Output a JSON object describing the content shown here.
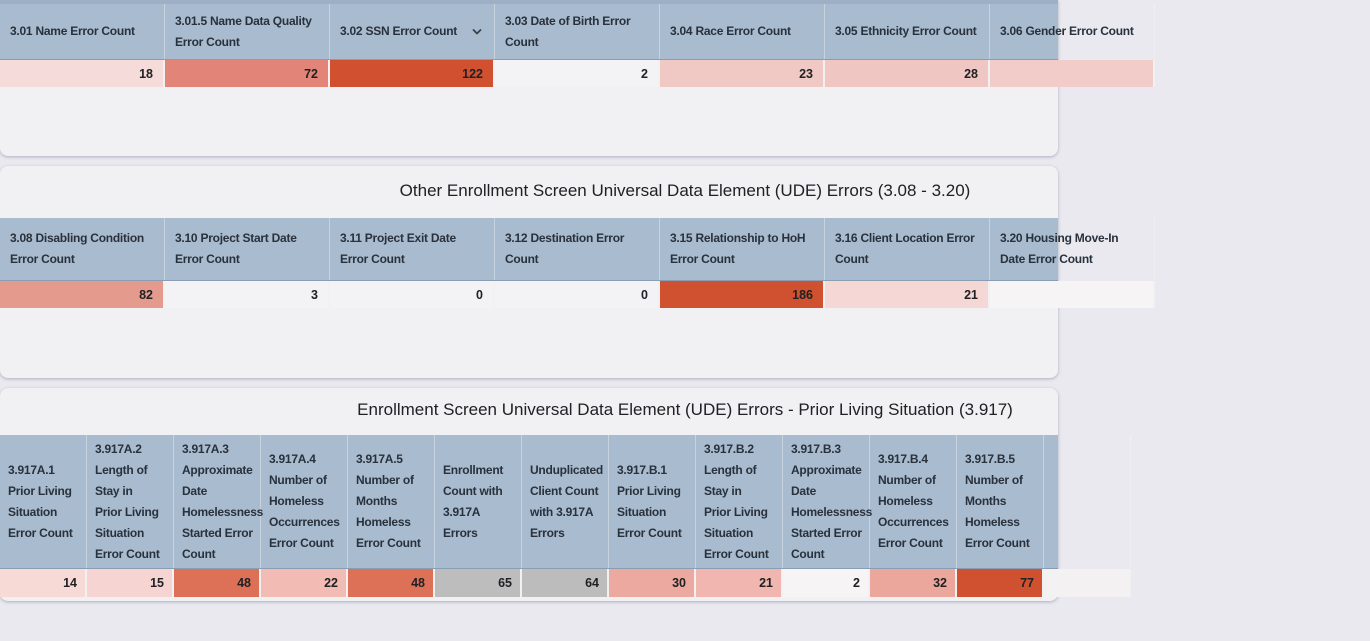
{
  "theme": {
    "page_bg": "#e9e9ef",
    "card_bg": "#f1f0f3",
    "header_bg": "#a9bbce",
    "header_text": "#28313c",
    "value_text": "#202124",
    "title_text": "#202124",
    "strong_error_color": "#d05231",
    "medium_error_color": "#dd7158",
    "light_error_color": "#f5dbd9",
    "neutral_count_color": "#bdbdbd"
  },
  "icons": {
    "sort_menu": "chevron-down-icon"
  },
  "sections": [
    {
      "id": "ude-client-elements",
      "title": "",
      "columns": [
        {
          "label": "3.01 Name Error Count",
          "lines": [
            "3.01 Name Error Count"
          ],
          "value": "18",
          "color": "#f5dbd9"
        },
        {
          "label": "3.01.5 Name Data Quality Error Count",
          "lines": [
            "3.01.5 Name Data Quality",
            "Error Count"
          ],
          "value": "72",
          "color": "#e28478"
        },
        {
          "label": "3.02 SSN Error Count",
          "lines": [
            "3.02 SSN Error Count"
          ],
          "value": "122",
          "color": "#d05030",
          "has_dropdown": true
        },
        {
          "label": "3.03 Date of Birth Error Count",
          "lines": [
            "3.03 Date of Birth Error",
            "Count"
          ],
          "value": "2",
          "color": "#f3f2f4"
        },
        {
          "label": "3.04 Race Error Count",
          "lines": [
            "3.04 Race Error Count"
          ],
          "value": "23",
          "color": "#f0c9c5"
        },
        {
          "label": "3.05 Ethnicity Error Count",
          "lines": [
            "3.05 Ethnicity Error Count"
          ],
          "value": "28",
          "color": "#efc6c2"
        },
        {
          "label": "3.06 Gender Error Count",
          "lines": [
            "3.06 Gender Error Count"
          ],
          "value": "",
          "color": "#f1ccc8"
        }
      ]
    },
    {
      "id": "ude-other-enrollment",
      "title": "Other Enrollment Screen Universal Data Element (UDE) Errors (3.08 - 3.20)",
      "columns": [
        {
          "label": "3.08 Disabling Condition Error Count",
          "lines": [
            "3.08 Disabling Condition",
            "Error Count"
          ],
          "value": "82",
          "color": "#e59a8e"
        },
        {
          "label": "3.10 Project Start Date Error Count",
          "lines": [
            "3.10 Project Start Date",
            "Error Count"
          ],
          "value": "3",
          "color": "#f3f2f4"
        },
        {
          "label": "3.11 Project Exit Date Error Count",
          "lines": [
            "3.11 Project Exit Date",
            "Error Count"
          ],
          "value": "0",
          "color": "#f3f2f4"
        },
        {
          "label": "3.12 Destination Error Count",
          "lines": [
            "3.12 Destination Error",
            "Count"
          ],
          "value": "0",
          "color": "#f3f2f4"
        },
        {
          "label": "3.15 Relationship to HoH Error Count",
          "lines": [
            "3.15 Relationship to HoH",
            "Error Count"
          ],
          "value": "186",
          "color": "#d0512f"
        },
        {
          "label": "3.16 Client Location Error Count",
          "lines": [
            "3.16 Client Location Error",
            "Count"
          ],
          "value": "21",
          "color": "#f5d8d5"
        },
        {
          "label": "3.20 Housing Move-In Date Error Count",
          "lines": [
            "3.20 Housing Move-In",
            "Date Error Count"
          ],
          "value": "",
          "color": "#f6f4f4"
        }
      ]
    },
    {
      "id": "ude-prior-living-situation",
      "title": "Enrollment Screen Universal Data Element (UDE) Errors - Prior Living Situation (3.917)",
      "columns": [
        {
          "label": "3.917A.1 Prior Living Situation Error Count",
          "lines": [
            "3.917A.1",
            "Prior Living",
            "Situation",
            "Error Count"
          ],
          "value": "14",
          "color": "#f7d9d6"
        },
        {
          "label": "3.917A.2 Length of Stay in Prior Living Situation Error Count",
          "lines": [
            "3.917A.2",
            "Length of",
            "Stay in",
            "Prior Living",
            "Situation",
            "Error Count"
          ],
          "value": "15",
          "color": "#f6d4d1"
        },
        {
          "label": "3.917A.3 Approximate Date Homelessness Started Error Count",
          "lines": [
            "3.917A.3",
            "Approximate",
            "Date",
            "Homelessness",
            "Started Error",
            "Count"
          ],
          "value": "48",
          "color": "#dd7158"
        },
        {
          "label": "3.917A.4 Number of Homeless Occurrences Error Count",
          "lines": [
            "3.917A.4",
            "Number of",
            "Homeless",
            "Occurrences",
            "Error Count"
          ],
          "value": "22",
          "color": "#f2bcb5"
        },
        {
          "label": "3.917A.5 Number of Months Homeless Error Count",
          "lines": [
            "3.917A.5",
            "Number of",
            "Months",
            "Homeless",
            "Error Count"
          ],
          "value": "48",
          "color": "#dd7158"
        },
        {
          "label": "Enrollment Count with 3.917A Errors",
          "lines": [
            "Enrollment",
            "Count with",
            "3.917A",
            "Errors"
          ],
          "value": "65",
          "color": "#bdbdbd"
        },
        {
          "label": "Unduplicated Client Count with 3.917A Errors",
          "lines": [
            "Unduplicated",
            "Client Count",
            "with 3.917A",
            "Errors"
          ],
          "value": "64",
          "color": "#bcbcbc"
        },
        {
          "label": "3.917.B.1 Prior Living Situation Error Count",
          "lines": [
            "3.917.B.1",
            "Prior Living",
            "Situation",
            "Error Count"
          ],
          "value": "30",
          "color": "#eca99f"
        },
        {
          "label": "3.917.B.2 Length of Stay in Prior Living Situation Error Count",
          "lines": [
            "3.917.B.2",
            "Length of",
            "Stay in",
            "Prior Living",
            "Situation",
            "Error Count"
          ],
          "value": "21",
          "color": "#f0b6af"
        },
        {
          "label": "3.917.B.3 Approximate Date Homelessness Started Error Count",
          "lines": [
            "3.917.B.3",
            "Approximate",
            "Date",
            "Homelessness",
            "Started Error",
            "Count"
          ],
          "value": "2",
          "color": "#f6f4f5"
        },
        {
          "label": "3.917.B.4 Number of Homeless Occurrences Error Count",
          "lines": [
            "3.917.B.4",
            "Number of",
            "Homeless",
            "Occurrences",
            "Error Count"
          ],
          "value": "32",
          "color": "#eca79d"
        },
        {
          "label": "3.917.B.5 Number of Months Homeless Error Count",
          "lines": [
            "3.917.B.5",
            "Number of",
            "Months",
            "Homeless",
            "Error Count"
          ],
          "value": "77",
          "color": "#d0512f"
        },
        {
          "label": "",
          "lines": [
            ""
          ],
          "value": "",
          "color": "#f3f1f1"
        }
      ]
    }
  ]
}
